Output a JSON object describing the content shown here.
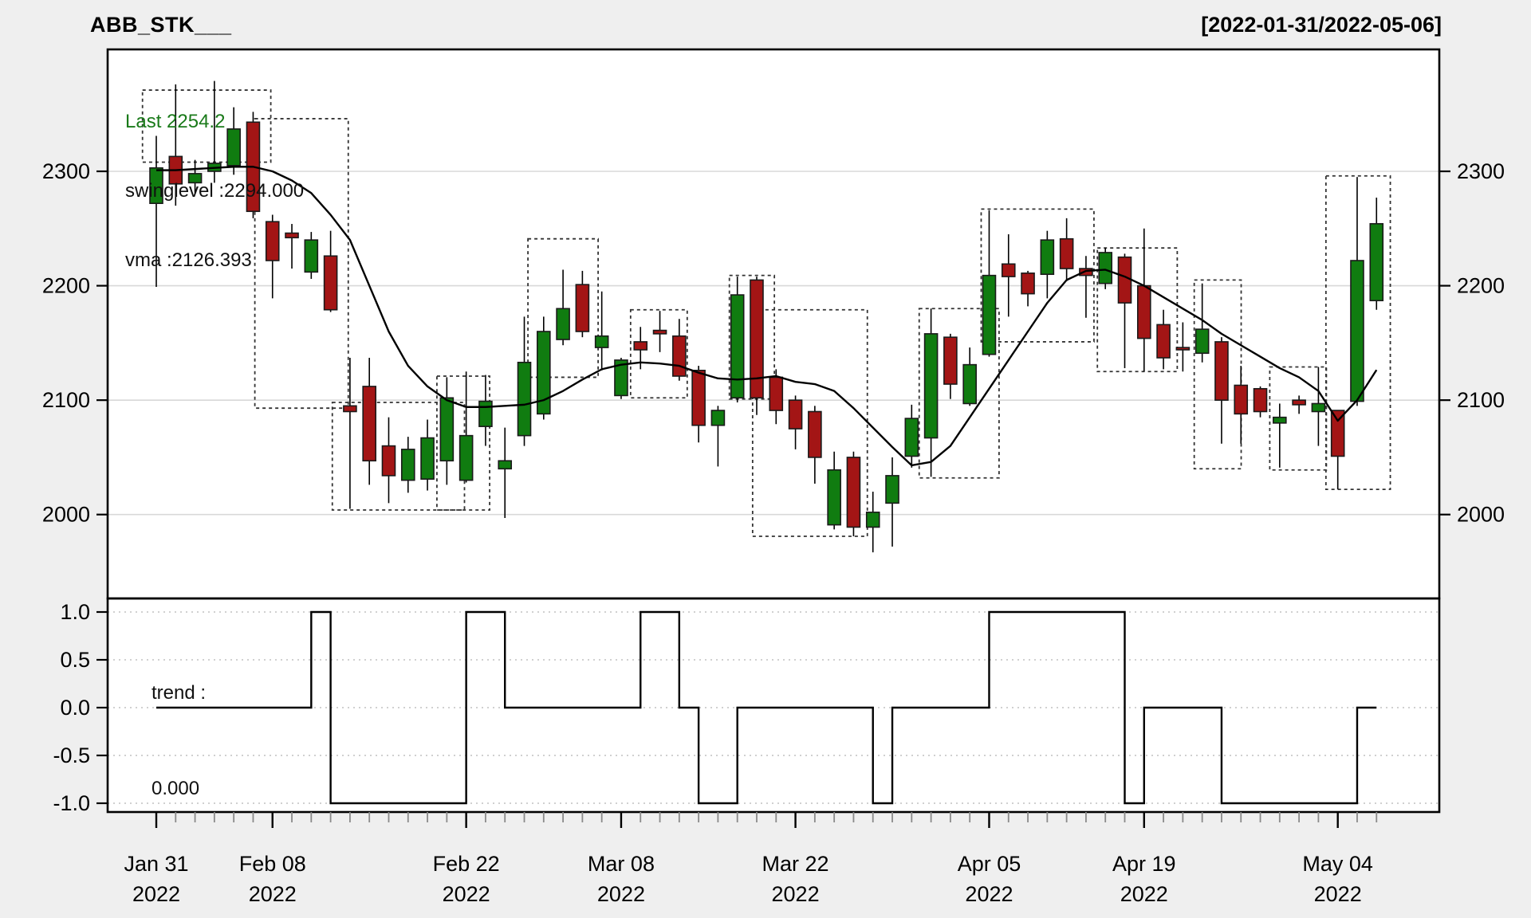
{
  "title": "ABB_STK___",
  "date_range": "[2022-01-31/2022-05-06]",
  "legend": {
    "last": "Last 2254.2",
    "swinglevel": "swinglevel :2294.000",
    "vma": "vma :2126.393"
  },
  "trend_panel_label": {
    "line1": "trend :",
    "line2": "0.000"
  },
  "colors": {
    "background": "#efefef",
    "plot_background": "#ffffff",
    "up_candle": "#107C10",
    "down_candle": "#A31515",
    "candle_border": "#1a1a1a",
    "grid_main": "#d8d8d8",
    "grid_trend": "#c9c9c9",
    "line": "#000000",
    "box_dash": "#333333",
    "legend_last_green": "#1a7a1a"
  },
  "chart_data": [
    {
      "type": "candlestick",
      "title": "ABB_STK___",
      "ylabel": "",
      "ylim": [
        1926,
        2408
      ],
      "y_ticks": [
        2000,
        2100,
        2200,
        2300
      ],
      "x_major_ticks": [
        {
          "bar": 0,
          "label1": "Jan 31",
          "label2": "2022"
        },
        {
          "bar": 6,
          "label1": "Feb 08",
          "label2": "2022"
        },
        {
          "bar": 16,
          "label1": "Feb 22",
          "label2": "2022"
        },
        {
          "bar": 24,
          "label1": "Mar 08",
          "label2": "2022"
        },
        {
          "bar": 33,
          "label1": "Mar 22",
          "label2": "2022"
        },
        {
          "bar": 43,
          "label1": "Apr 05",
          "label2": "2022"
        },
        {
          "bar": 51,
          "label1": "Apr 19",
          "label2": "2022"
        },
        {
          "bar": 61,
          "label1": "May 04",
          "label2": "2022"
        }
      ],
      "ohlc_note": "each candle = [open, high, low, close]; 64 daily bars 2022-01-31..2022-05-06",
      "candles": [
        [
          2272,
          2331,
          2199,
          2303
        ],
        [
          2313,
          2376,
          2270,
          2289
        ],
        [
          2290,
          2310,
          2281,
          2298
        ],
        [
          2300,
          2379,
          2290,
          2307
        ],
        [
          2305,
          2356,
          2297,
          2337
        ],
        [
          2343,
          2352,
          2259,
          2265
        ],
        [
          2256,
          2262,
          2189,
          2222
        ],
        [
          2246,
          2254,
          2215,
          2242
        ],
        [
          2212,
          2247,
          2206,
          2240
        ],
        [
          2226,
          2248,
          2177,
          2179
        ],
        [
          2095,
          2137,
          2005,
          2090
        ],
        [
          2112,
          2137,
          2026,
          2047
        ],
        [
          2060,
          2085,
          2010,
          2034
        ],
        [
          2030,
          2068,
          2019,
          2057
        ],
        [
          2031,
          2083,
          2021,
          2067
        ],
        [
          2047,
          2120,
          2026,
          2102
        ],
        [
          2030,
          2125,
          2028,
          2069
        ],
        [
          2077,
          2122,
          2060,
          2099
        ],
        [
          2040,
          2076,
          1997,
          2047
        ],
        [
          2069,
          2173,
          2060,
          2133
        ],
        [
          2088,
          2173,
          2083,
          2160
        ],
        [
          2153,
          2214,
          2148,
          2180
        ],
        [
          2201,
          2213,
          2155,
          2160
        ],
        [
          2146,
          2195,
          2126,
          2156
        ],
        [
          2104,
          2137,
          2101,
          2135
        ],
        [
          2151,
          2164,
          2127,
          2144
        ],
        [
          2161,
          2178,
          2142,
          2158
        ],
        [
          2156,
          2171,
          2117,
          2121
        ],
        [
          2126,
          2130,
          2063,
          2078
        ],
        [
          2078,
          2095,
          2042,
          2091
        ],
        [
          2102,
          2208,
          2098,
          2192
        ],
        [
          2205,
          2208,
          2087,
          2102
        ],
        [
          2120,
          2127,
          2079,
          2091
        ],
        [
          2100,
          2104,
          2057,
          2075
        ],
        [
          2090,
          2095,
          2027,
          2050
        ],
        [
          1991,
          2055,
          1987,
          2039
        ],
        [
          2050,
          2055,
          1981,
          1989
        ],
        [
          1989,
          2020,
          1967,
          2002
        ],
        [
          2010,
          2050,
          1972,
          2034
        ],
        [
          2051,
          2096,
          2041,
          2084
        ],
        [
          2067,
          2180,
          2033,
          2158
        ],
        [
          2155,
          2158,
          2101,
          2114
        ],
        [
          2097,
          2146,
          2095,
          2131
        ],
        [
          2140,
          2266,
          2138,
          2209
        ],
        [
          2219,
          2245,
          2173,
          2208
        ],
        [
          2211,
          2213,
          2182,
          2193
        ],
        [
          2210,
          2248,
          2189,
          2240
        ],
        [
          2241,
          2259,
          2204,
          2215
        ],
        [
          2215,
          2226,
          2172,
          2209
        ],
        [
          2202,
          2233,
          2197,
          2229
        ],
        [
          2225,
          2228,
          2128,
          2185
        ],
        [
          2200,
          2250,
          2125,
          2154
        ],
        [
          2166,
          2179,
          2127,
          2137
        ],
        [
          2146,
          2168,
          2125,
          2144
        ],
        [
          2141,
          2202,
          2133,
          2162
        ],
        [
          2151,
          2155,
          2062,
          2100
        ],
        [
          2113,
          2130,
          2062,
          2088
        ],
        [
          2110,
          2112,
          2085,
          2090
        ],
        [
          2080,
          2097,
          2041,
          2085
        ],
        [
          2100,
          2104,
          2088,
          2096
        ],
        [
          2090,
          2129,
          2060,
          2097
        ],
        [
          2091,
          2091,
          2022,
          2051
        ],
        [
          2099,
          2295,
          2095,
          2222
        ],
        [
          2187,
          2277,
          2179,
          2254.2
        ]
      ],
      "series": [
        {
          "name": "vma",
          "last_value": 2126.393,
          "values": [
            2301,
            2301,
            2302,
            2303,
            2304,
            2304,
            2300,
            2292,
            2281,
            2262,
            2240,
            2200,
            2160,
            2130,
            2112,
            2100,
            2094,
            2094,
            2095,
            2096,
            2100,
            2108,
            2118,
            2127,
            2131,
            2133,
            2132,
            2130,
            2124,
            2119,
            2118,
            2119,
            2121,
            2116,
            2114,
            2108,
            2093,
            2076,
            2059,
            2043,
            2046,
            2060,
            2085,
            2110,
            2135,
            2160,
            2185,
            2205,
            2213,
            2214,
            2208,
            2200,
            2190,
            2180,
            2170,
            2158,
            2148,
            2138,
            2128,
            2120,
            2108,
            2082,
            2100,
            2126.4
          ]
        }
      ],
      "swing_level": 2294.0,
      "last_close": 2254.2,
      "swing_boxes": [
        [
          -0.3,
          5.5,
          2308,
          2371
        ],
        [
          5.5,
          9.5,
          2093,
          2346
        ],
        [
          9.5,
          15.5,
          2004,
          2098
        ],
        [
          14.9,
          16.8,
          2004,
          2121
        ],
        [
          19.6,
          22.4,
          2120,
          2241
        ],
        [
          24.9,
          27.0,
          2102,
          2179
        ],
        [
          30.0,
          31.5,
          2101,
          2209
        ],
        [
          31.2,
          36.3,
          1981,
          2179
        ],
        [
          39.8,
          43.1,
          2032,
          2180
        ],
        [
          43.0,
          48.0,
          2151,
          2267
        ],
        [
          49.0,
          52.3,
          2125,
          2233
        ],
        [
          54.0,
          55.6,
          2040,
          2205
        ],
        [
          57.9,
          60.0,
          2039,
          2129
        ],
        [
          60.8,
          63.3,
          2022,
          2296
        ]
      ],
      "legend_position": "top-left",
      "grid": true
    },
    {
      "type": "line",
      "subtype": "step",
      "title": "trend",
      "last_value": 0.0,
      "ylim": [
        -1.09,
        1.14
      ],
      "y_ticks": [
        1.0,
        0.5,
        0.0,
        -0.5,
        -1.0
      ],
      "y_tick_labels": [
        "1.0",
        "0.5",
        "0.0",
        "-0.5",
        "-1.0"
      ],
      "values": [
        0,
        0,
        0,
        0,
        0,
        0,
        0,
        0,
        1,
        -1,
        -1,
        -1,
        -1,
        -1,
        -1,
        -1,
        1,
        1,
        0,
        0,
        0,
        0,
        0,
        0,
        0,
        1,
        1,
        0,
        -1,
        -1,
        0,
        0,
        0,
        0,
        0,
        0,
        0,
        -1,
        0,
        0,
        0,
        0,
        0,
        1,
        1,
        1,
        1,
        1,
        1,
        1,
        -1,
        0,
        0,
        0,
        0,
        -1,
        -1,
        -1,
        -1,
        -1,
        -1,
        -1,
        0,
        0
      ],
      "grid": "dotted"
    }
  ]
}
